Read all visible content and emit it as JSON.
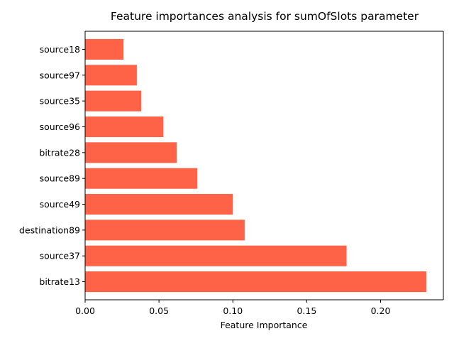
{
  "chart_data": {
    "type": "bar",
    "orientation": "horizontal",
    "title": "Feature importances analysis for sumOfSlots parameter",
    "xlabel": "Feature Importance",
    "ylabel": "",
    "categories": [
      "bitrate13",
      "source37",
      "destination89",
      "source49",
      "source89",
      "bitrate28",
      "source96",
      "source35",
      "source97",
      "source18"
    ],
    "values": [
      0.231,
      0.177,
      0.108,
      0.1,
      0.076,
      0.062,
      0.053,
      0.038,
      0.035,
      0.026
    ],
    "xlim": [
      0.0,
      0.2425
    ],
    "xticks": [
      0.0,
      0.05,
      0.1,
      0.15,
      0.2
    ],
    "xtick_labels": [
      "0.00",
      "0.05",
      "0.10",
      "0.15",
      "0.20"
    ],
    "grid": false,
    "legend": "none",
    "bar_color": "#ff6347"
  }
}
